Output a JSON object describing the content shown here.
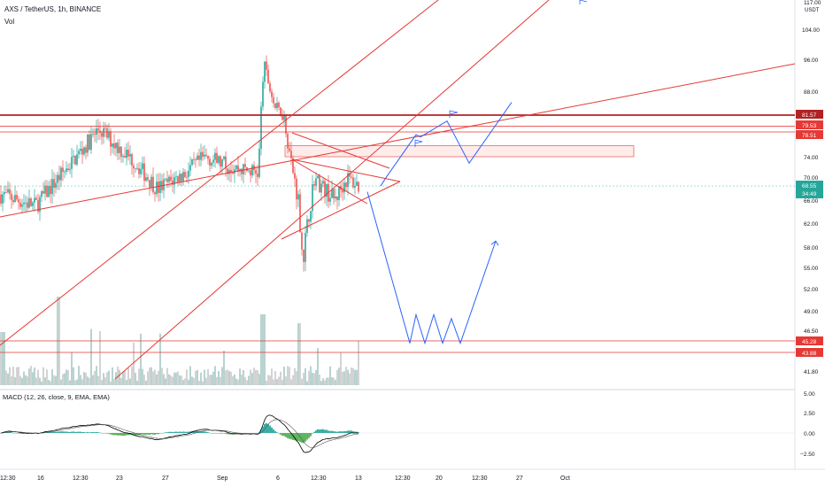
{
  "header": {
    "symbol_title": "AXS / TetherUS, 1h, BINANCE",
    "volume_label": "Vol",
    "macd_label": "MACD (12, 26, close, 9, EMA, EMA)",
    "currency": "USDT"
  },
  "price_axis": {
    "labels": [
      "117.00",
      "104.00",
      "96.00",
      "88.00",
      "74.00",
      "70.00",
      "66.00",
      "62.00",
      "58.00",
      "55.00",
      "52.00",
      "49.00",
      "46.50",
      "41.80"
    ],
    "badges": [
      {
        "text": "81.57",
        "color": "#b22222"
      },
      {
        "text": "79.53",
        "color": "#e53935"
      },
      {
        "text": "78.51",
        "color": "#e53935"
      },
      {
        "text": "68.55",
        "color": "#26a69a"
      },
      {
        "text": "34:49",
        "color": "#26a69a"
      },
      {
        "text": "45.28",
        "color": "#e53935"
      },
      {
        "text": "43.88",
        "color": "#e53935"
      }
    ]
  },
  "macd_axis": {
    "labels": [
      "5.00",
      "2.50",
      "0.00",
      "−2.50"
    ]
  },
  "time_axis": {
    "labels": [
      "12:30",
      "16",
      "12:30",
      "23",
      "27",
      "Sep",
      "6",
      "12:30",
      "13",
      "12:30",
      "20",
      "12:30",
      "27",
      "Oct"
    ]
  },
  "colors": {
    "up": "#26a69a",
    "down": "#ef5350",
    "trendline": "#e53935",
    "level": "#b22222",
    "projection": "#2962ff",
    "zone_fill": "#fdecea",
    "zone_stroke": "#e53935",
    "macd_hist": "#26a69a",
    "macd_line": "#000000"
  },
  "chart_data": {
    "type": "candlestick",
    "symbol": "AXS / TetherUS",
    "timeframe": "1h",
    "exchange": "BINANCE",
    "price_range": [
      40.5,
      118
    ],
    "last_price": 68.55,
    "horizontal_levels": [
      81.57,
      79.53,
      78.51,
      45.28,
      43.88
    ],
    "resistance_zone": [
      74.0,
      76.0
    ],
    "approx_close_path": [
      {
        "t": "Aug 13",
        "p": 67
      },
      {
        "t": "Aug 16",
        "p": 65
      },
      {
        "t": "Aug 17",
        "p": 70
      },
      {
        "t": "Aug 19",
        "p": 79
      },
      {
        "t": "Aug 21",
        "p": 73
      },
      {
        "t": "Aug 24",
        "p": 68
      },
      {
        "t": "Aug 27",
        "p": 71
      },
      {
        "t": "Aug 29",
        "p": 74
      },
      {
        "t": "Aug 31",
        "p": 72
      },
      {
        "t": "Sep 2",
        "p": 71
      },
      {
        "t": "Sep 3",
        "p": 95
      },
      {
        "t": "Sep 4",
        "p": 84
      },
      {
        "t": "Sep 5",
        "p": 82
      },
      {
        "t": "Sep 6",
        "p": 72
      },
      {
        "t": "Sep 7",
        "p": 66
      },
      {
        "t": "Sep 7 12:00",
        "p": 56
      },
      {
        "t": "Sep 8",
        "p": 70
      },
      {
        "t": "Sep 10",
        "p": 66
      },
      {
        "t": "Sep 11",
        "p": 70
      },
      {
        "t": "Sep 12",
        "p": 68.55
      }
    ],
    "projection_up_path": [
      68.55,
      70.3,
      78.0,
      77.6,
      80.5,
      72.8,
      85.0
    ],
    "projection_down_path": [
      67.5,
      45.0,
      48.5,
      45.0,
      48.5,
      45.0,
      48.0,
      45.0,
      59.0
    ],
    "macd_range": [
      -4,
      6
    ]
  }
}
